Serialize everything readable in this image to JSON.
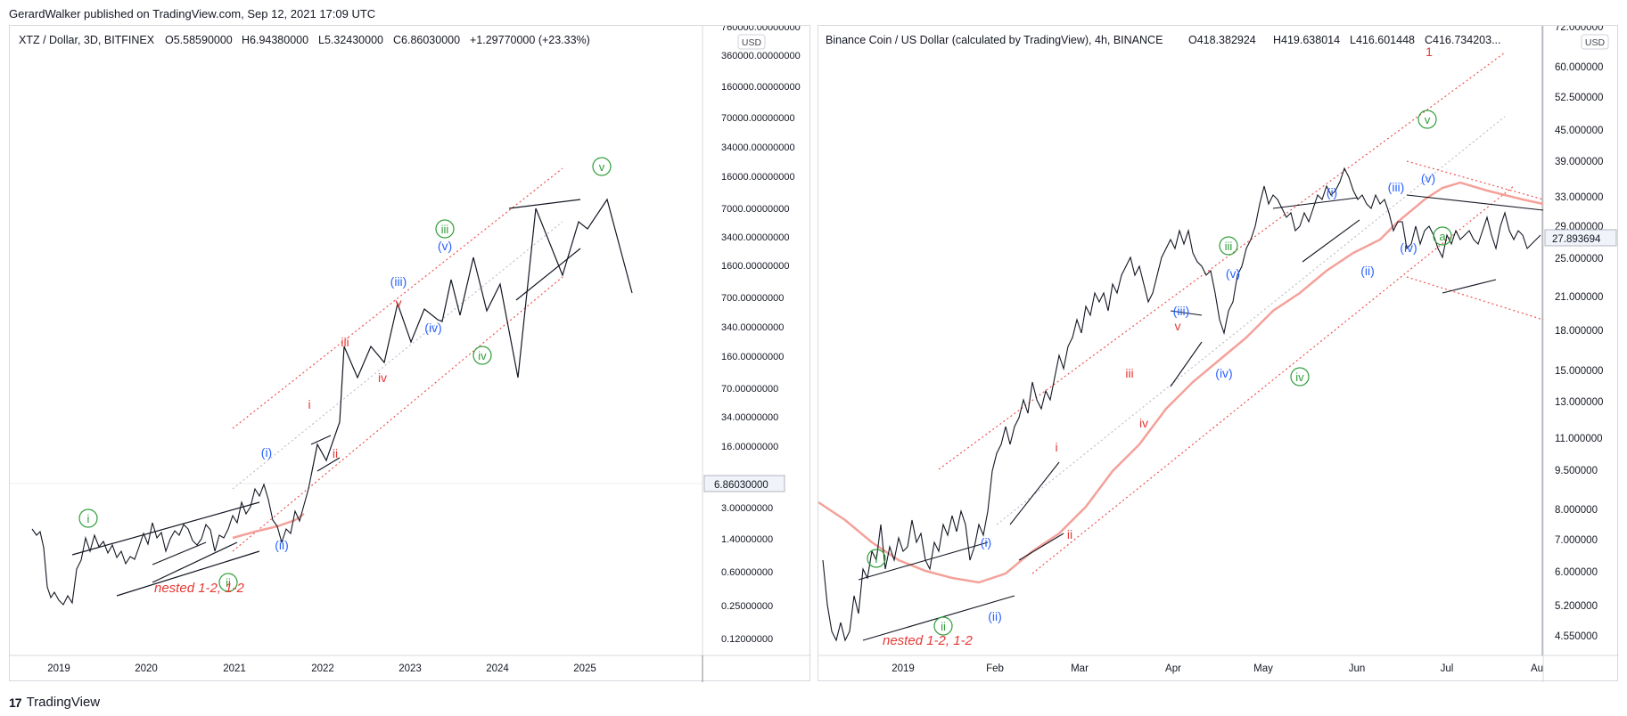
{
  "header": {
    "published": "GerardWalker published on TradingView.com, Sep 12, 2021 17:09 UTC"
  },
  "footer": {
    "logo": "17",
    "brand": "TradingView"
  },
  "colors": {
    "green": "#2e9e3a",
    "blue": "#2962ff",
    "red": "#e53935",
    "ma": "#f4a19a",
    "channel": "#ef5350"
  },
  "chart_data": [
    {
      "type": "line",
      "title": "XTZ / Dollar, 3D, BITFINEX",
      "ohlc": [
        "O5.58590000",
        "H6.94380000",
        "L5.32430000",
        "C6.86030000",
        "+1.29770000 (+23.33%)"
      ],
      "currency": "USD",
      "last_price": "6.86030000",
      "yscale": "log",
      "y_ticks": [
        "760000.00000000",
        "360000.00000000",
        "160000.00000000",
        "70000.00000000",
        "34000.00000000",
        "16000.00000000",
        "7000.00000000",
        "3400.00000000",
        "1600.00000000",
        "700.00000000",
        "340.00000000",
        "160.00000000",
        "70.00000000",
        "34.00000000",
        "16.00000000",
        "3.00000000",
        "1.40000000",
        "0.60000000",
        "0.25000000",
        "0.12000000"
      ],
      "x_ticks": [
        "2019",
        "2020",
        "2021",
        "2022",
        "2023",
        "2024",
        "2025"
      ],
      "annotation": "nested 1-2, 1-2",
      "wave_labels": [
        {
          "text": "i",
          "style": "green-circle"
        },
        {
          "text": "ii",
          "style": "green-circle"
        },
        {
          "text": "(i)",
          "style": "blue"
        },
        {
          "text": "(ii)",
          "style": "blue"
        },
        {
          "text": "i",
          "style": "red"
        },
        {
          "text": "ii",
          "style": "red"
        },
        {
          "text": "iii",
          "style": "red"
        },
        {
          "text": "iv",
          "style": "red"
        },
        {
          "text": "v",
          "style": "red"
        },
        {
          "text": "(iii)",
          "style": "blue"
        },
        {
          "text": "(iv)",
          "style": "blue"
        },
        {
          "text": "(v)",
          "style": "blue"
        },
        {
          "text": "iii",
          "style": "green-circle"
        },
        {
          "text": "iv",
          "style": "green-circle"
        },
        {
          "text": "v",
          "style": "green-circle"
        }
      ]
    },
    {
      "type": "line",
      "title": "Binance Coin / US Dollar (calculated by TradingView), 4h, BINANCE",
      "ohlc": [
        "O418.382924",
        "H419.638014",
        "L416.601448",
        "C416.734203..."
      ],
      "currency": "USD",
      "last_price": "27.893694",
      "yscale": "log",
      "y_ticks": [
        "72.000000",
        "60.000000",
        "52.500000",
        "45.000000",
        "39.000000",
        "33.000000",
        "29.000000",
        "25.000000",
        "21.000000",
        "18.000000",
        "15.000000",
        "13.000000",
        "11.000000",
        "9.500000",
        "8.000000",
        "7.000000",
        "6.000000",
        "5.200000",
        "4.550000"
      ],
      "x_ticks": [
        "2019",
        "Feb",
        "Mar",
        "Apr",
        "May",
        "Jun",
        "Jul",
        "Au"
      ],
      "annotation": "nested 1-2, 1-2",
      "wave_labels": [
        {
          "text": "i",
          "style": "green-circle"
        },
        {
          "text": "ii",
          "style": "green-circle"
        },
        {
          "text": "(i)",
          "style": "blue"
        },
        {
          "text": "(ii)",
          "style": "blue"
        },
        {
          "text": "i",
          "style": "red"
        },
        {
          "text": "ii",
          "style": "red"
        },
        {
          "text": "iii",
          "style": "red"
        },
        {
          "text": "iv",
          "style": "red"
        },
        {
          "text": "v",
          "style": "red"
        },
        {
          "text": "(iii)",
          "style": "blue"
        },
        {
          "text": "(iv)",
          "style": "blue"
        },
        {
          "text": "(v)",
          "style": "blue"
        },
        {
          "text": "iii",
          "style": "green-circle"
        },
        {
          "text": "iv",
          "style": "green-circle"
        },
        {
          "text": "(i)",
          "style": "blue"
        },
        {
          "text": "(ii)",
          "style": "blue"
        },
        {
          "text": "(iii)",
          "style": "blue"
        },
        {
          "text": "(iv)",
          "style": "blue"
        },
        {
          "text": "(v)",
          "style": "blue"
        },
        {
          "text": "v",
          "style": "green-circle"
        },
        {
          "text": "a",
          "style": "green-circle"
        },
        {
          "text": "1",
          "style": "red"
        }
      ]
    }
  ]
}
